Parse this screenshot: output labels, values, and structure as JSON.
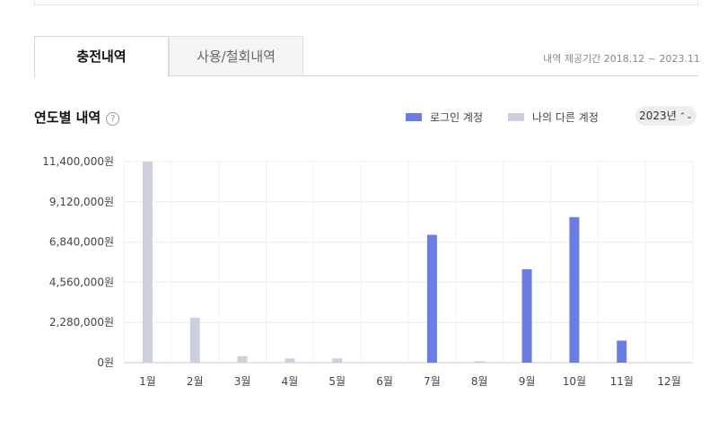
{
  "tabs": {
    "active": "충전내역",
    "inactive": "사용/철회내역"
  },
  "period": "내역 제공기간 2018.12 ~ 2023.11",
  "section": {
    "title": "연도별 내역",
    "help": "?"
  },
  "year_select": {
    "value": "2023년",
    "caret": "⌃⌄"
  },
  "colors": {
    "login": "#6b7de3",
    "other": "#cdd0dc"
  },
  "chart_data": {
    "type": "bar",
    "categories": [
      "1월",
      "2월",
      "3월",
      "4월",
      "5월",
      "6월",
      "7월",
      "8월",
      "9월",
      "10월",
      "11월",
      "12월"
    ],
    "series": [
      {
        "name": "로그인 계정",
        "values": [
          0,
          0,
          0,
          0,
          0,
          0,
          7250000,
          0,
          5300000,
          8250000,
          1250000,
          0
        ]
      },
      {
        "name": "나의 다른 계정",
        "values": [
          11400000,
          2550000,
          370000,
          240000,
          240000,
          0,
          0,
          80000,
          0,
          0,
          0,
          0
        ]
      }
    ],
    "yticks": [
      "0원",
      "2,280,000원",
      "4,560,000원",
      "6,840,000원",
      "9,120,000원",
      "11,400,000원"
    ],
    "ylim": [
      0,
      11400000
    ],
    "grid": true,
    "legend": "top-right"
  }
}
